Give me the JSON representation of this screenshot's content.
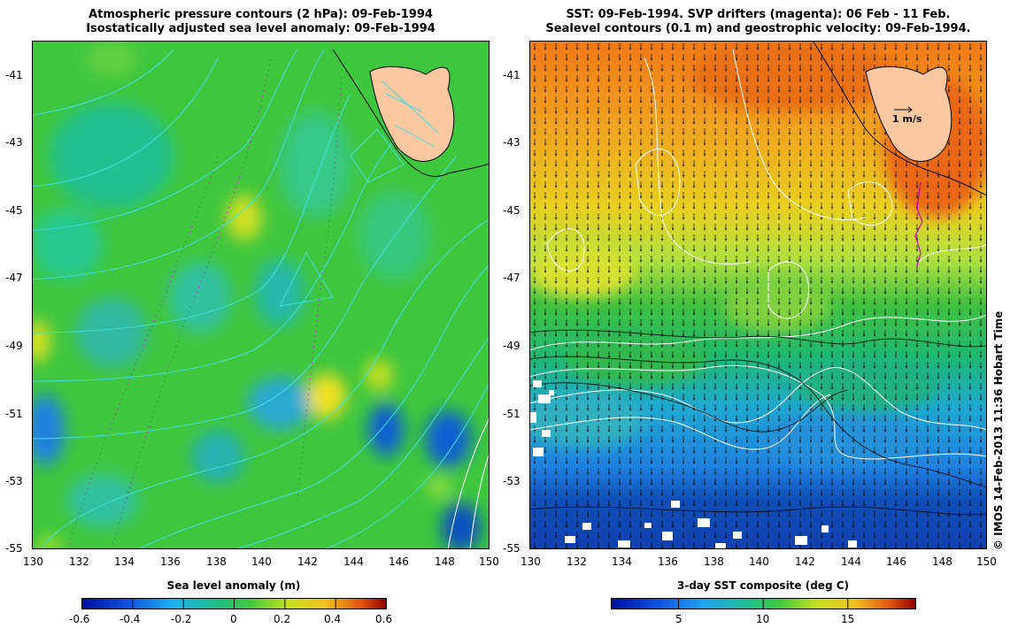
{
  "left_panel": {
    "title_line1": "Atmospheric pressure contours (2 hPa): 09-Feb-1994",
    "title_line2": "Isostatically adjusted sea level anomaly: 09-Feb-1994",
    "colorbar": {
      "title": "Sea level anomaly (m)",
      "range": [
        -0.6,
        0.6
      ],
      "ticks": [
        "-0.6",
        "-0.4",
        "-0.2",
        "0",
        "0.2",
        "0.4",
        "0.6"
      ]
    }
  },
  "right_panel": {
    "title_line1": "SST: 09-Feb-1994. SVP drifters (magenta): 06 Feb - 11 Feb.",
    "title_line2": "Sealevel contours (0.1 m) and geostrophic velocity: 09-Feb-1994.",
    "velocity_scale_label": "1 m/s",
    "colorbar": {
      "title": "3-day SST composite (deg C)",
      "range": [
        1,
        19
      ],
      "ticks": [
        "5",
        "10",
        "15"
      ]
    }
  },
  "axes": {
    "lon_range": [
      130,
      150
    ],
    "lat_range": [
      -55,
      -40
    ],
    "lon_ticks": [
      "130",
      "132",
      "134",
      "136",
      "138",
      "140",
      "142",
      "144",
      "146",
      "148",
      "150"
    ],
    "lat_ticks": [
      "-41",
      "-43",
      "-45",
      "-47",
      "-49",
      "-51",
      "-53",
      "-55"
    ]
  },
  "credit": "© IMOS 14-Feb-2013 11:36 Hobart Time",
  "colors": {
    "land": "#f9c8a0",
    "left_base": "#3fc83f",
    "pressure_contour": "#40e0e0",
    "sealevel_contour": "#ffffff",
    "drifter": "#c000c0"
  }
}
